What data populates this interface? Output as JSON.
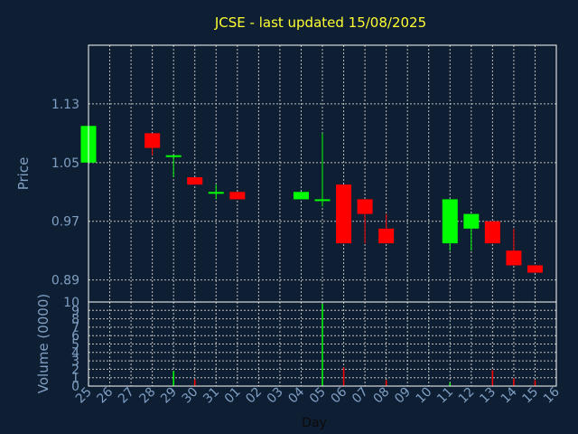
{
  "colors": {
    "background": "#0f1f33",
    "title": "#ffff33",
    "axis_text": "#7f9fc4",
    "grid": "#bfbfbf",
    "frame": "#ffffff",
    "up": "#00ff00",
    "down": "#ff0000"
  },
  "chart_data": [
    {
      "type": "candlestick",
      "title": "JCSE - last updated 15/08/2025",
      "ylabel": "Price",
      "ylim": [
        0.86,
        1.21
      ],
      "yticks": [
        "1.13",
        "1.05",
        "0.97",
        "0.89"
      ],
      "ytick_values": [
        1.13,
        1.05,
        0.97,
        0.89
      ],
      "grid": true,
      "x": [
        "25",
        "26",
        "27",
        "28",
        "29",
        "30",
        "31",
        "01",
        "02",
        "03",
        "04",
        "05",
        "06",
        "07",
        "08",
        "09",
        "10",
        "11",
        "12",
        "13",
        "14",
        "15",
        "16"
      ],
      "candles": [
        {
          "day": "25",
          "open": 1.05,
          "high": 1.1,
          "low": 1.05,
          "close": 1.1
        },
        {
          "day": "28",
          "open": 1.09,
          "high": 1.09,
          "low": 1.06,
          "close": 1.07
        },
        {
          "day": "29",
          "open": 1.06,
          "high": 1.06,
          "low": 1.03,
          "close": 1.06
        },
        {
          "day": "30",
          "open": 1.03,
          "high": 1.03,
          "low": 1.02,
          "close": 1.02
        },
        {
          "day": "31",
          "open": 1.01,
          "high": 1.02,
          "low": 1.0,
          "close": 1.01
        },
        {
          "day": "01",
          "open": 1.01,
          "high": 1.01,
          "low": 1.0,
          "close": 1.0
        },
        {
          "day": "04",
          "open": 1.0,
          "high": 1.01,
          "low": 1.0,
          "close": 1.01
        },
        {
          "day": "05",
          "open": 1.0,
          "high": 1.09,
          "low": 0.99,
          "close": 1.0
        },
        {
          "day": "06",
          "open": 1.02,
          "high": 1.02,
          "low": 0.94,
          "close": 0.94
        },
        {
          "day": "07",
          "open": 1.0,
          "high": 1.0,
          "low": 0.94,
          "close": 0.98
        },
        {
          "day": "08",
          "open": 0.96,
          "high": 0.98,
          "low": 0.94,
          "close": 0.94
        },
        {
          "day": "11",
          "open": 0.94,
          "high": 1.0,
          "low": 0.93,
          "close": 1.0
        },
        {
          "day": "12",
          "open": 0.96,
          "high": 0.98,
          "low": 0.93,
          "close": 0.98
        },
        {
          "day": "13",
          "open": 0.97,
          "high": 0.97,
          "low": 0.94,
          "close": 0.94
        },
        {
          "day": "14",
          "open": 0.93,
          "high": 0.96,
          "low": 0.91,
          "close": 0.91
        },
        {
          "day": "15",
          "open": 0.91,
          "high": 0.91,
          "low": 0.9,
          "close": 0.9
        }
      ]
    },
    {
      "type": "bar",
      "ylabel": "Volume (0000)",
      "xlabel": "Day",
      "ylim": [
        0,
        10
      ],
      "yticks": [
        "10",
        "9",
        "8",
        "7",
        "6",
        "5",
        "4",
        "3",
        "2",
        "1",
        "0"
      ],
      "ytick_values": [
        10,
        9,
        8,
        7,
        6,
        5,
        4,
        3,
        2,
        1,
        0
      ],
      "grid": true,
      "categories": [
        "25",
        "26",
        "27",
        "28",
        "29",
        "30",
        "31",
        "01",
        "02",
        "03",
        "04",
        "05",
        "06",
        "07",
        "08",
        "09",
        "10",
        "11",
        "12",
        "13",
        "14",
        "15",
        "16"
      ],
      "bars": [
        {
          "day": "29",
          "value": 1.8,
          "color": "up"
        },
        {
          "day": "30",
          "value": 0.8,
          "color": "down"
        },
        {
          "day": "05",
          "value": 9.8,
          "color": "up"
        },
        {
          "day": "06",
          "value": 2.2,
          "color": "down"
        },
        {
          "day": "08",
          "value": 0.7,
          "color": "down"
        },
        {
          "day": "11",
          "value": 0.4,
          "color": "up"
        },
        {
          "day": "13",
          "value": 1.9,
          "color": "down"
        },
        {
          "day": "14",
          "value": 0.9,
          "color": "down"
        },
        {
          "day": "15",
          "value": 0.7,
          "color": "down"
        }
      ]
    }
  ]
}
